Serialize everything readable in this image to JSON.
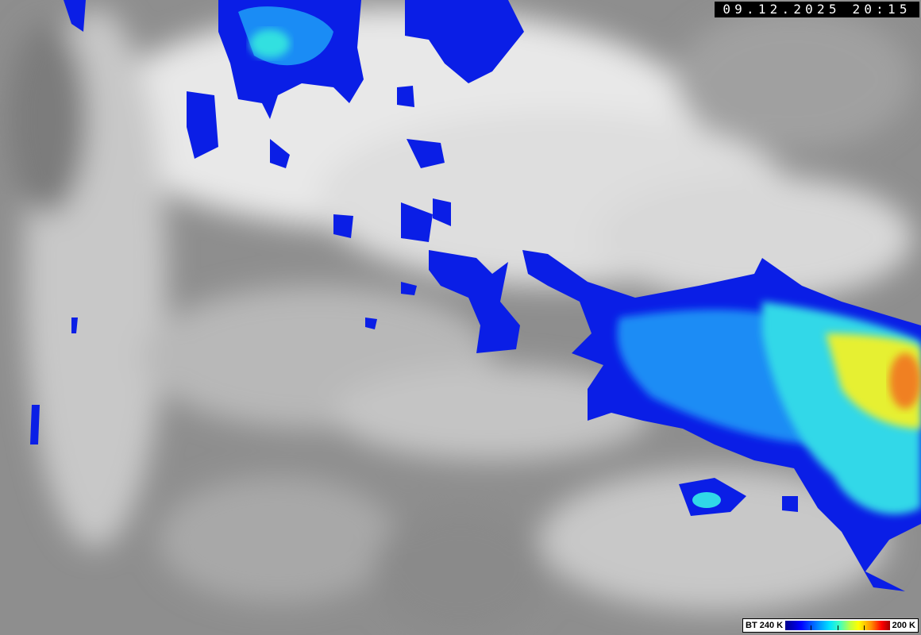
{
  "timestamp": "09.12.2025 20:15",
  "legend": {
    "left_label": "BT 240 K",
    "right_label": "200 K",
    "colormap": [
      "#00008c",
      "#0000ff",
      "#0080ff",
      "#00e0ff",
      "#40ffc0",
      "#c0ff40",
      "#ffff00",
      "#ff9000",
      "#ff0000",
      "#a00000"
    ]
  },
  "colors": {
    "background_gray": "#8c8c8c",
    "cloud_white": "#f0f0f0",
    "cold_top_blue": "#0a1ee6"
  }
}
